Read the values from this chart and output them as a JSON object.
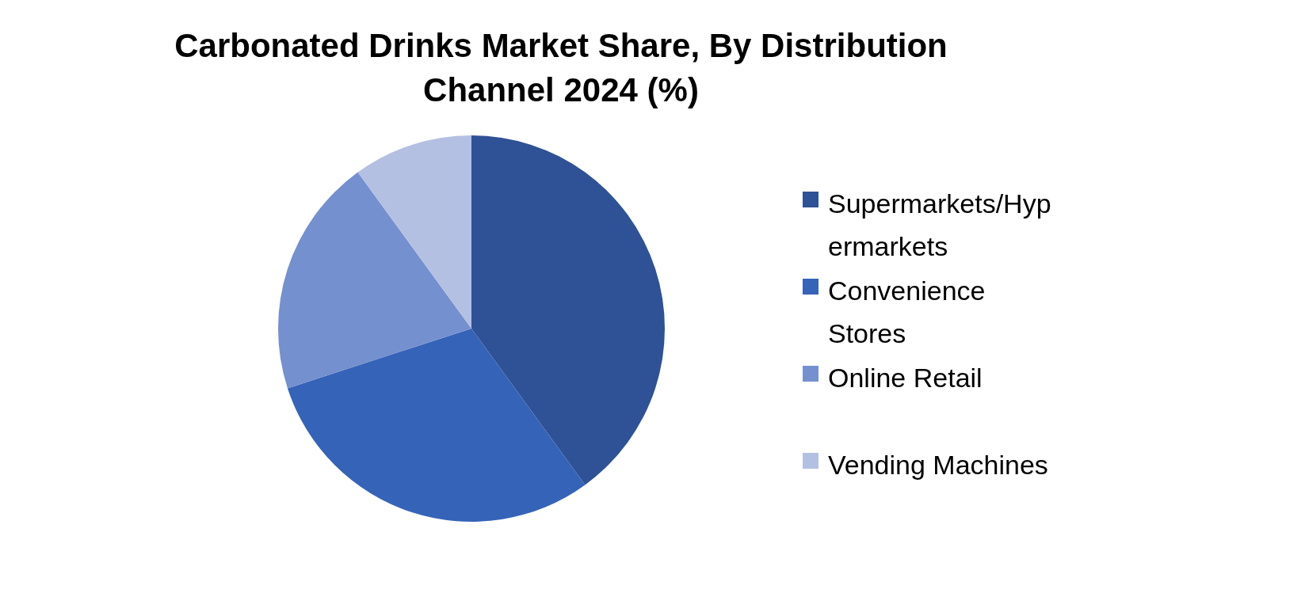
{
  "chart_data": {
    "type": "pie",
    "title": "Carbonated Drinks Market Share, By Distribution Channel 2024 (%)",
    "categories": [
      "Supermarkets/Hypermarkets",
      "Convenience Stores",
      "Online Retail",
      "Vending Machines"
    ],
    "values": [
      40,
      30,
      20,
      10
    ],
    "colors": [
      "#2f5195",
      "#3563b8",
      "#7590cf",
      "#b4c0e2"
    ],
    "legend": "right"
  }
}
